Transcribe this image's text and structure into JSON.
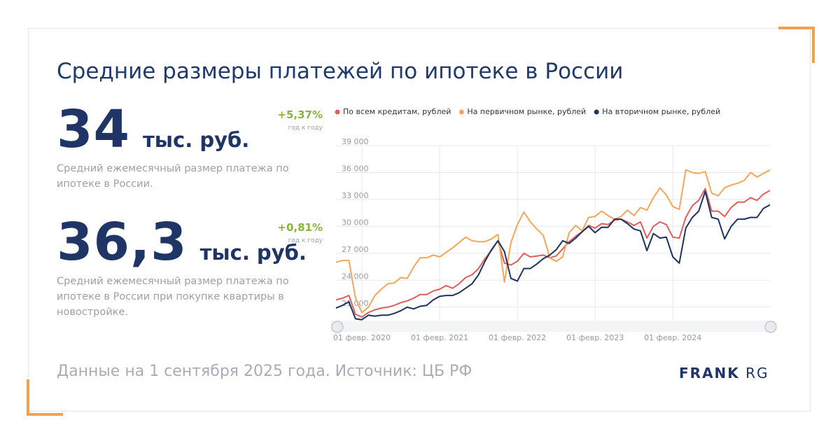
{
  "title": "Средние размеры платежей по ипотеке в России",
  "stats": [
    {
      "value": "34",
      "unit": "тыс. руб.",
      "change": "+5,37%",
      "change_note": "год к году",
      "description": "Средний ежемесячный размер платежа по ипотеке в России."
    },
    {
      "value": "36,3",
      "unit": "тыс. руб.",
      "change": "+0,81%",
      "change_note": "год к году",
      "description": "Средний ежемесячный размер платежа по ипотеке в России при покупке квартиры в новостройке."
    }
  ],
  "footer": "Данные на 1 сентября 2025 года. Источник: ЦБ РФ",
  "logo": {
    "bold": "FRANK",
    "light": "RG"
  },
  "chart_data": {
    "type": "line",
    "categories": [
      null,
      null,
      null,
      null,
      "01 февр. 2020",
      null,
      null,
      null,
      null,
      null,
      null,
      null,
      null,
      null,
      null,
      null,
      "01 февр. 2021",
      null,
      null,
      null,
      null,
      null,
      null,
      null,
      null,
      null,
      null,
      null,
      "01 февр. 2022",
      null,
      null,
      null,
      null,
      null,
      null,
      null,
      null,
      null,
      null,
      null,
      "01 февр. 2023",
      null,
      null,
      null,
      null,
      null,
      null,
      null,
      null,
      null,
      null,
      null,
      "01 февр. 2024",
      null,
      null,
      null,
      null,
      null,
      null,
      null,
      null,
      null,
      null,
      null,
      null,
      null,
      null,
      null
    ],
    "series": [
      {
        "name": "По всем кредитам, рублей",
        "color": "#e35d5b",
        "values": [
          21800,
          22000,
          22300,
          20200,
          19900,
          20400,
          20700,
          20900,
          21000,
          21200,
          21500,
          21700,
          22000,
          22400,
          22400,
          22800,
          23000,
          23400,
          23100,
          23600,
          24300,
          24600,
          25300,
          26400,
          27300,
          28400,
          25900,
          25700,
          26100,
          27000,
          26600,
          26700,
          26800,
          26500,
          26700,
          27500,
          28300,
          28900,
          29400,
          30100,
          29800,
          30300,
          30200,
          30700,
          30800,
          30500,
          30100,
          30500,
          28700,
          30000,
          30500,
          30200,
          28800,
          28700,
          31000,
          32300,
          32900,
          34200,
          31700,
          31700,
          31100,
          32100,
          32700,
          32700,
          33200,
          32900,
          33600,
          34000
        ]
      },
      {
        "name": "На первичном рынке, рублей",
        "color": "#f6a656",
        "values": [
          26000,
          26200,
          26200,
          22000,
          20400,
          21000,
          22300,
          23000,
          23600,
          23700,
          24300,
          24200,
          25500,
          26500,
          26500,
          26800,
          26600,
          27100,
          27600,
          28200,
          28800,
          28400,
          28300,
          28300,
          28600,
          29100,
          23800,
          28200,
          30200,
          31600,
          30500,
          29700,
          29000,
          26500,
          26100,
          26600,
          29300,
          30100,
          29500,
          31000,
          31100,
          31700,
          31200,
          30800,
          31100,
          31800,
          31200,
          32100,
          31800,
          33200,
          34300,
          33500,
          32200,
          31900,
          36300,
          36000,
          35900,
          36100,
          33700,
          33400,
          34300,
          34600,
          34800,
          35100,
          36000,
          35500,
          35900,
          36300
        ]
      },
      {
        "name": "На вторичном рынке, рублей",
        "color": "#1d3461",
        "values": [
          20900,
          21200,
          21600,
          19700,
          19600,
          20100,
          20000,
          20100,
          20100,
          20300,
          20600,
          21000,
          20800,
          21100,
          21200,
          21800,
          22200,
          22300,
          22300,
          22600,
          23100,
          23600,
          24600,
          26100,
          27400,
          28400,
          27200,
          24200,
          23900,
          25300,
          25300,
          25800,
          26400,
          26800,
          27400,
          28400,
          28100,
          28700,
          29400,
          30000,
          29300,
          29900,
          29900,
          30800,
          30800,
          30300,
          29700,
          29500,
          27300,
          29200,
          28700,
          28800,
          26600,
          25900,
          29800,
          31000,
          31700,
          33900,
          31000,
          30800,
          28600,
          30000,
          30800,
          30800,
          31000,
          31000,
          32000,
          32400
        ]
      }
    ],
    "ylim": [
      19500,
      39000
    ],
    "yticks": [
      {
        "value": 21000,
        "label": "21 000"
      },
      {
        "value": 24000,
        "label": "24 000"
      },
      {
        "value": 27000,
        "label": "27 000"
      },
      {
        "value": 30000,
        "label": "30 000"
      },
      {
        "value": 33000,
        "label": "33 000"
      },
      {
        "value": 36000,
        "label": "36 000"
      },
      {
        "value": 39000,
        "label": "39 000"
      }
    ],
    "grid": true,
    "legend": "top"
  }
}
